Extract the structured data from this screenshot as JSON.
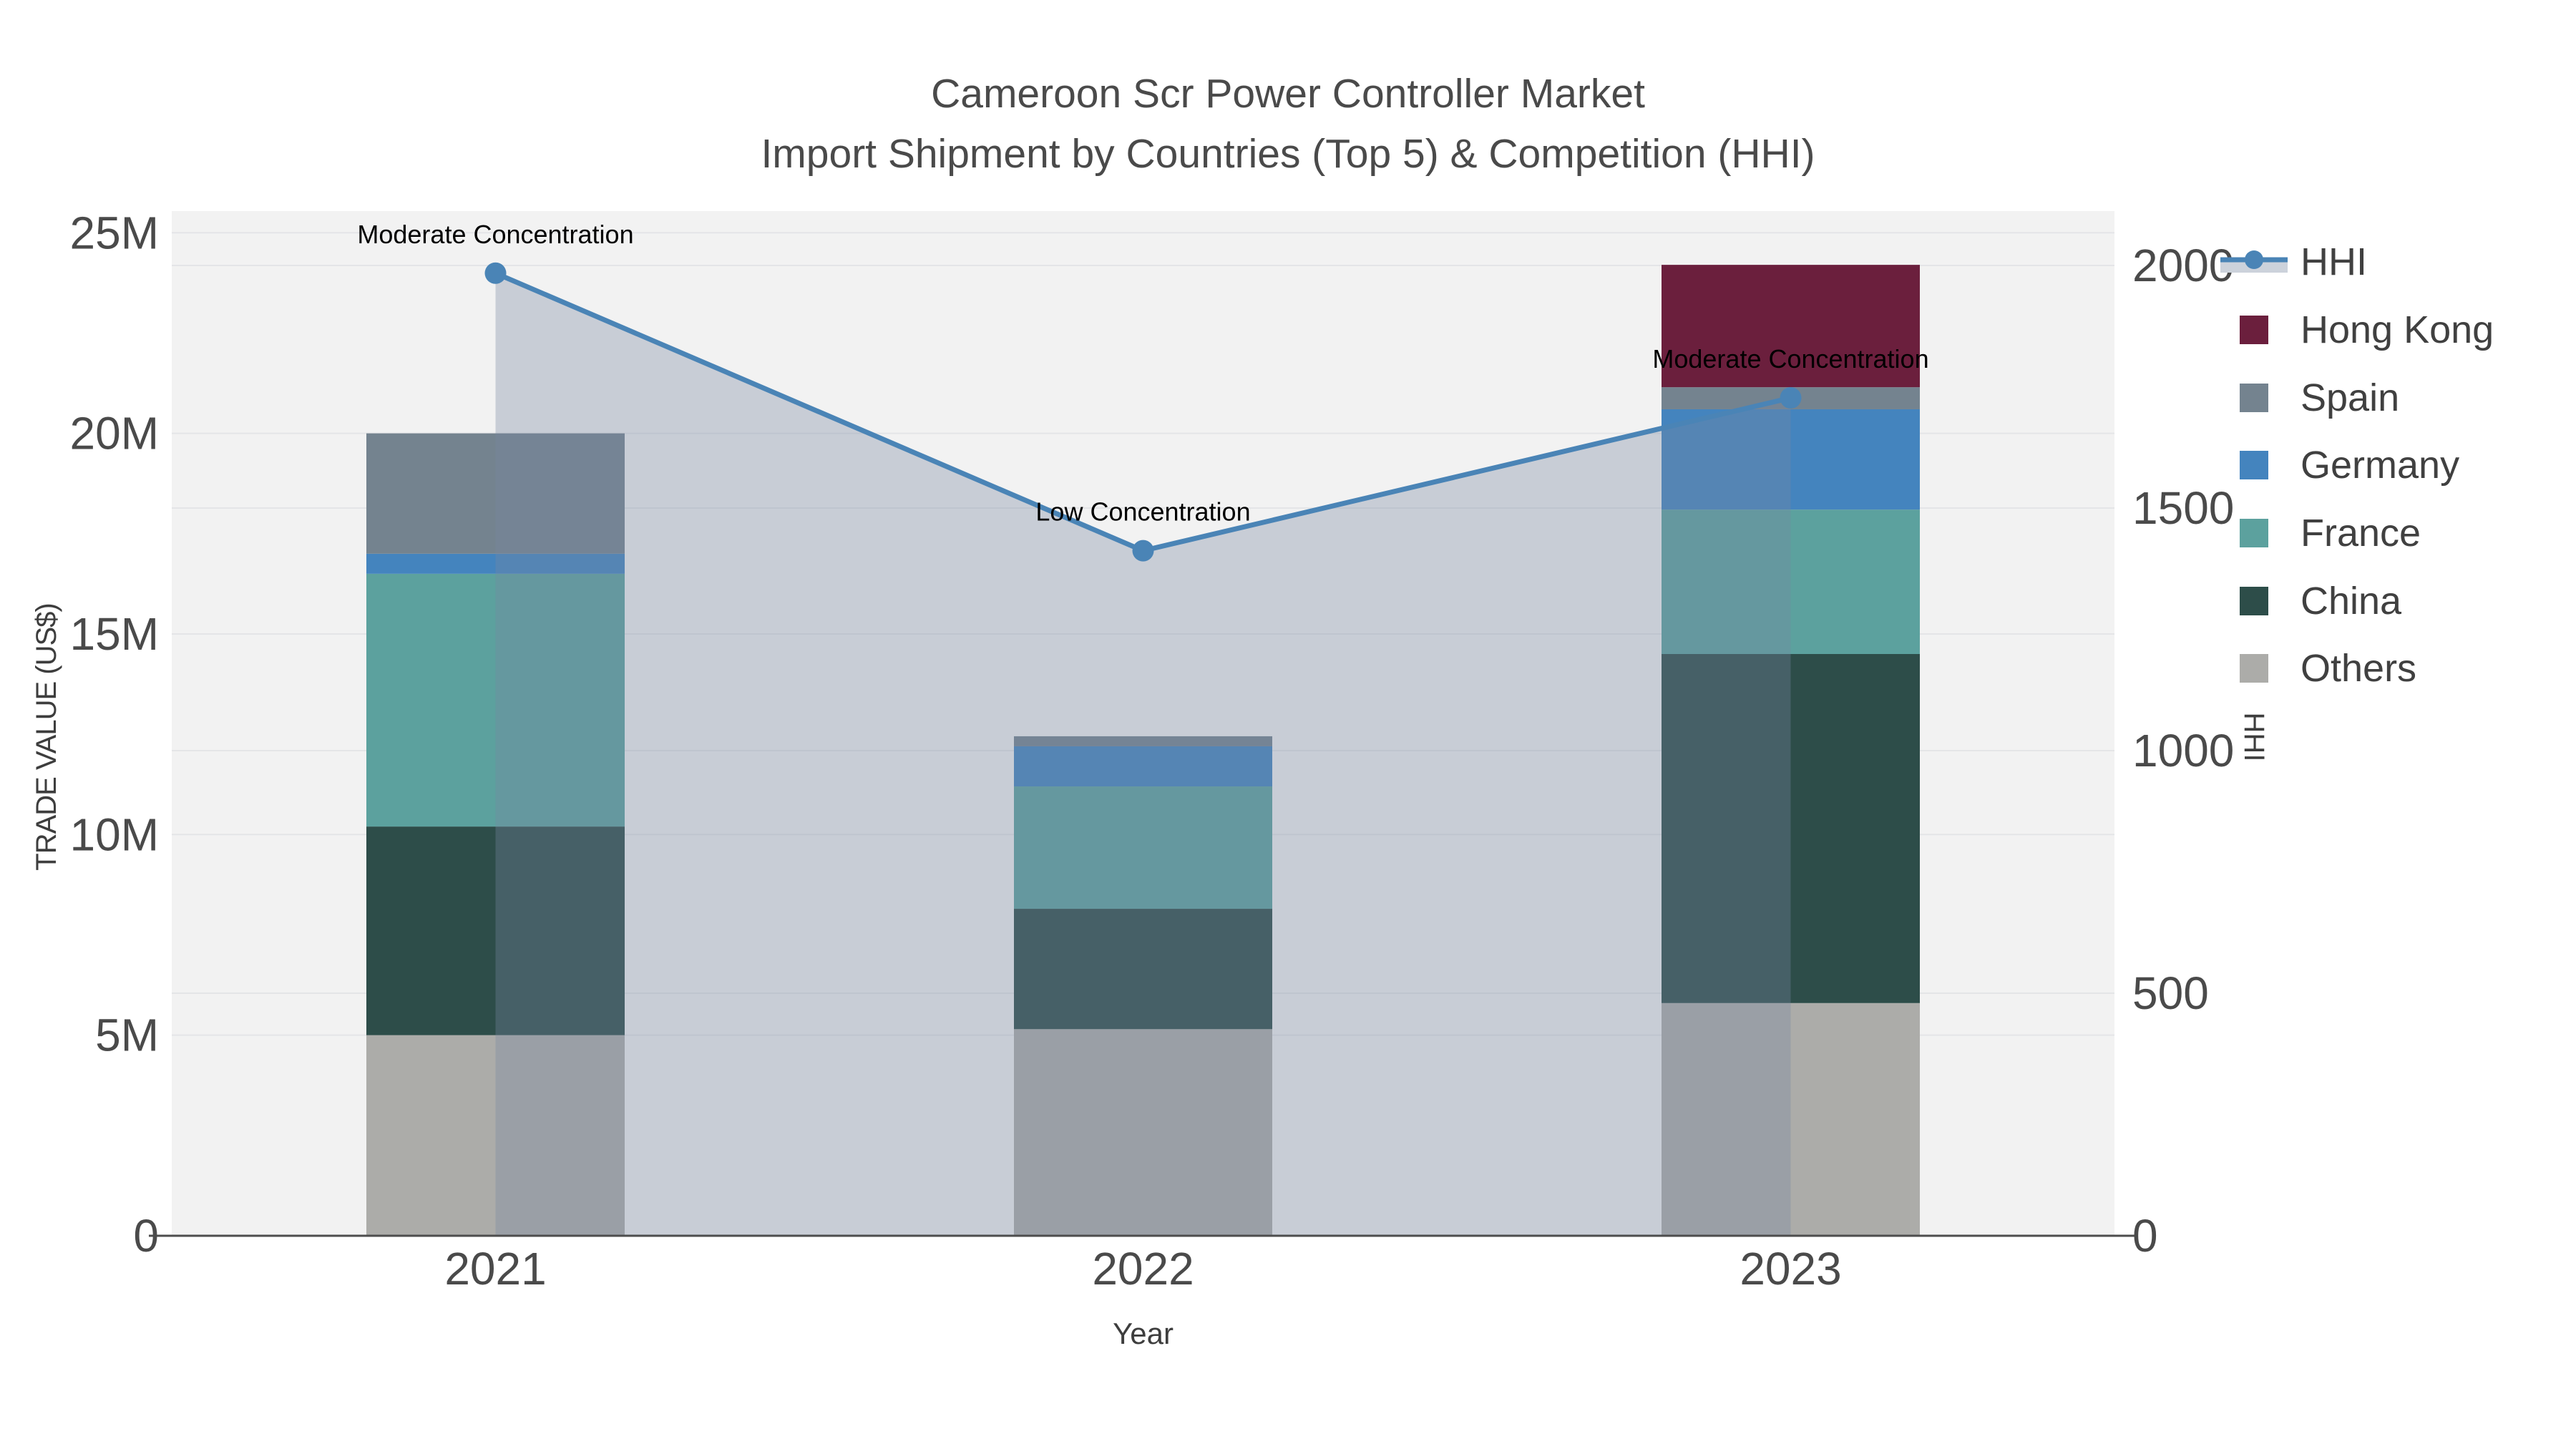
{
  "figure": {
    "title": "Cameroon Scr Power Controller Market",
    "subtitle": "Import Shipment by Countries (Top 5) & Competition (HHI)"
  },
  "chart_data": {
    "type": "bar",
    "subtype": "stacked-bars-with-dual-axis-line",
    "categories": [
      "2021",
      "2022",
      "2023"
    ],
    "stack_order_bottom_to_top": [
      "Others",
      "China",
      "France",
      "Germany",
      "Spain",
      "Hong Kong"
    ],
    "series": [
      {
        "name": "Hong Kong",
        "color": "#6b1f3d",
        "values": [
          0,
          0,
          3.05
        ]
      },
      {
        "name": "Spain",
        "color": "#74838f",
        "values": [
          3.0,
          0.25,
          0.55
        ]
      },
      {
        "name": "Germany",
        "color": "#4484be",
        "values": [
          0.5,
          1.0,
          2.5
        ]
      },
      {
        "name": "France",
        "color": "#5ca19e",
        "values": [
          6.3,
          3.05,
          3.6
        ]
      },
      {
        "name": "China",
        "color": "#2d4d49",
        "values": [
          5.2,
          3.0,
          8.7
        ]
      },
      {
        "name": "Others",
        "color": "#acaca9",
        "values": [
          5.0,
          5.15,
          5.8
        ]
      }
    ],
    "values_unit": "million US$",
    "bar_totals": [
      20.0,
      12.45,
      24.2
    ],
    "line_series": {
      "name": "HHI",
      "color": "#4a84b6",
      "area_fill": "rgba(120,135,160,0.34)",
      "values": [
        1984,
        1412,
        1727
      ]
    },
    "annotations": [
      {
        "text": "Moderate Concentration",
        "category": "2021"
      },
      {
        "text": "Low Concentration",
        "category": "2022"
      },
      {
        "text": "Moderate Concentration",
        "category": "2023"
      }
    ],
    "left_axis": {
      "title": "TRADE VALUE (US$)",
      "ticks": [
        "0",
        "5M",
        "10M",
        "15M",
        "20M",
        "25M"
      ],
      "tick_values": [
        0,
        5,
        10,
        15,
        20,
        25
      ],
      "max": 25.54
    },
    "right_axis": {
      "title": "HHI",
      "ticks": [
        "0",
        "500",
        "1000",
        "1500",
        "2000"
      ],
      "tick_values": [
        0,
        500,
        1000,
        1500,
        2000
      ],
      "max": 2112
    },
    "x_axis": {
      "title": "Year"
    },
    "legend": [
      "HHI",
      "Hong Kong",
      "Spain",
      "Germany",
      "France",
      "China",
      "Others"
    ],
    "grid": true,
    "legend_position": "top-right"
  },
  "colors": {
    "figure_bg": "#ffffff",
    "plot_bg": "#f2f2f2",
    "gridline": "#e4e5e7",
    "axis_line": "#4d4d4d",
    "tick_label": "#4a4a4a",
    "axis_title": "#3d3d3d",
    "annotation_text": "#000000",
    "legend_text": "#404040",
    "hhi_legend_band": "#ccd2db"
  }
}
